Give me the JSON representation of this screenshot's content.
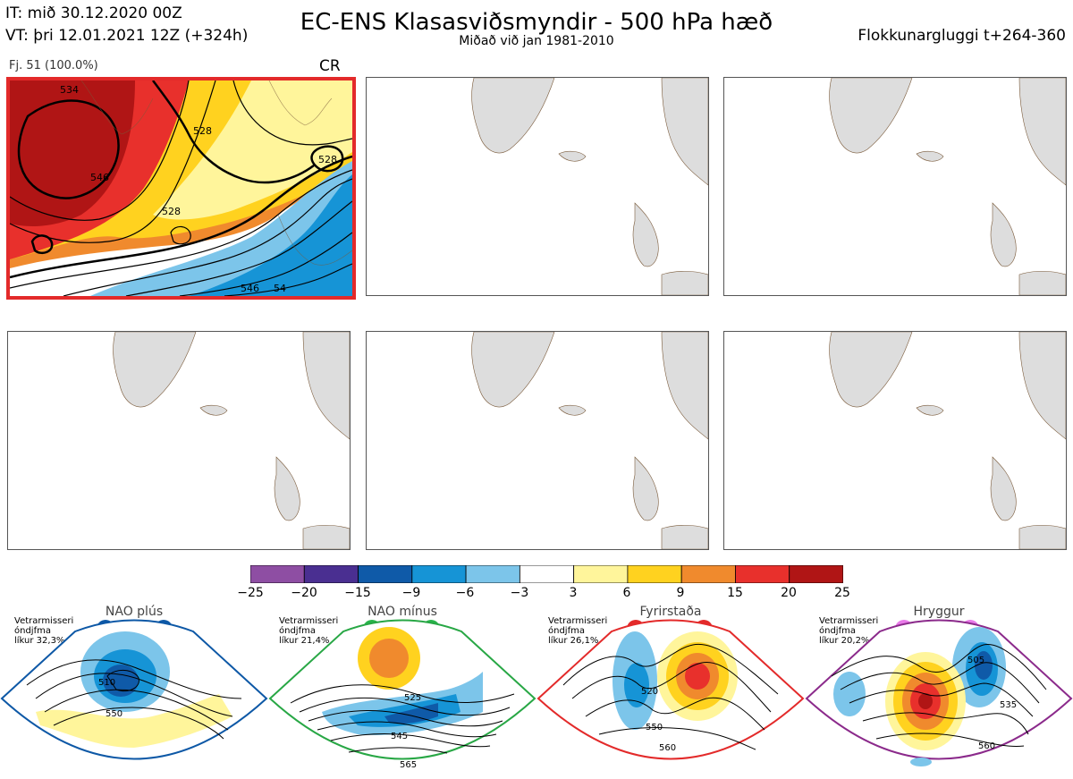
{
  "header": {
    "it_line": "IT: mið 30.12.2020 00Z",
    "vt_line": "VT: þri 12.01.2021 12Z  (+324h)",
    "title": "EC-ENS Klasasviðsmyndir - 500 hPa hæð",
    "subtitle": "Miðað við jan 1981-2010",
    "window": "Flokkunargluggi t+264-360"
  },
  "cluster": {
    "label": "Fj. 51 (100.0%)",
    "regime_code": "CR"
  },
  "map_contours": [
    "528",
    "546",
    "528",
    "528",
    "546",
    "534",
    "54"
  ],
  "colorbar": {
    "ticks": [
      "−25",
      "−20",
      "−15",
      "−9",
      "−6",
      "−3",
      "3",
      "6",
      "9",
      "15",
      "20",
      "25"
    ],
    "colors": [
      "#8e4ea3",
      "#4a2f91",
      "#0f5aa8",
      "#1694d6",
      "#7cc5ea",
      "#ffffff",
      "#fff59b",
      "#ffd21f",
      "#f08a2d",
      "#e8302c",
      "#b01515"
    ]
  },
  "regimes": [
    {
      "name": "NAO plús",
      "info1": "Vetrarmisseri",
      "info2": "óndjfma",
      "info3": "líkur 32,3%",
      "labels": [
        "510",
        "550"
      ],
      "color": "#0d58a6",
      "dot": "#0d58a6"
    },
    {
      "name": "NAO mínus",
      "info1": "Vetrarmisseri",
      "info2": "óndjfma",
      "info3": "líkur 21,4%",
      "labels": [
        "525",
        "545",
        "565"
      ],
      "color": "#28a745",
      "dot": "#28b44a"
    },
    {
      "name": "Fyrirstaða",
      "info1": "Vetrarmisseri",
      "info2": "óndjfma",
      "info3": "líkur 26,1%",
      "labels": [
        "520",
        "550",
        "560"
      ],
      "color": "#e32a2a",
      "dot": "#e32a2a"
    },
    {
      "name": "Hryggur",
      "info1": "Vetrarmisseri",
      "info2": "óndjfma",
      "info3": "líkur 20,2%",
      "labels": [
        "505",
        "535",
        "560"
      ],
      "color": "#8b2a8b",
      "dot": "#e87ae8"
    }
  ],
  "chart_data": {
    "type": "heatmap",
    "title": "EC-ENS Klasasviðsmyndir - 500 hPa hæð",
    "subtitle": "Miðað við jan 1981-2010",
    "colorbar_bins": [
      -25,
      -20,
      -15,
      -9,
      -6,
      -3,
      3,
      6,
      9,
      15,
      20,
      25
    ],
    "regime_probabilities": [
      {
        "name": "NAO plús",
        "value": 32.3
      },
      {
        "name": "NAO mínus",
        "value": 21.4
      },
      {
        "name": "Fyrirstaða",
        "value": 26.1
      },
      {
        "name": "Hryggur",
        "value": 20.2
      }
    ]
  }
}
